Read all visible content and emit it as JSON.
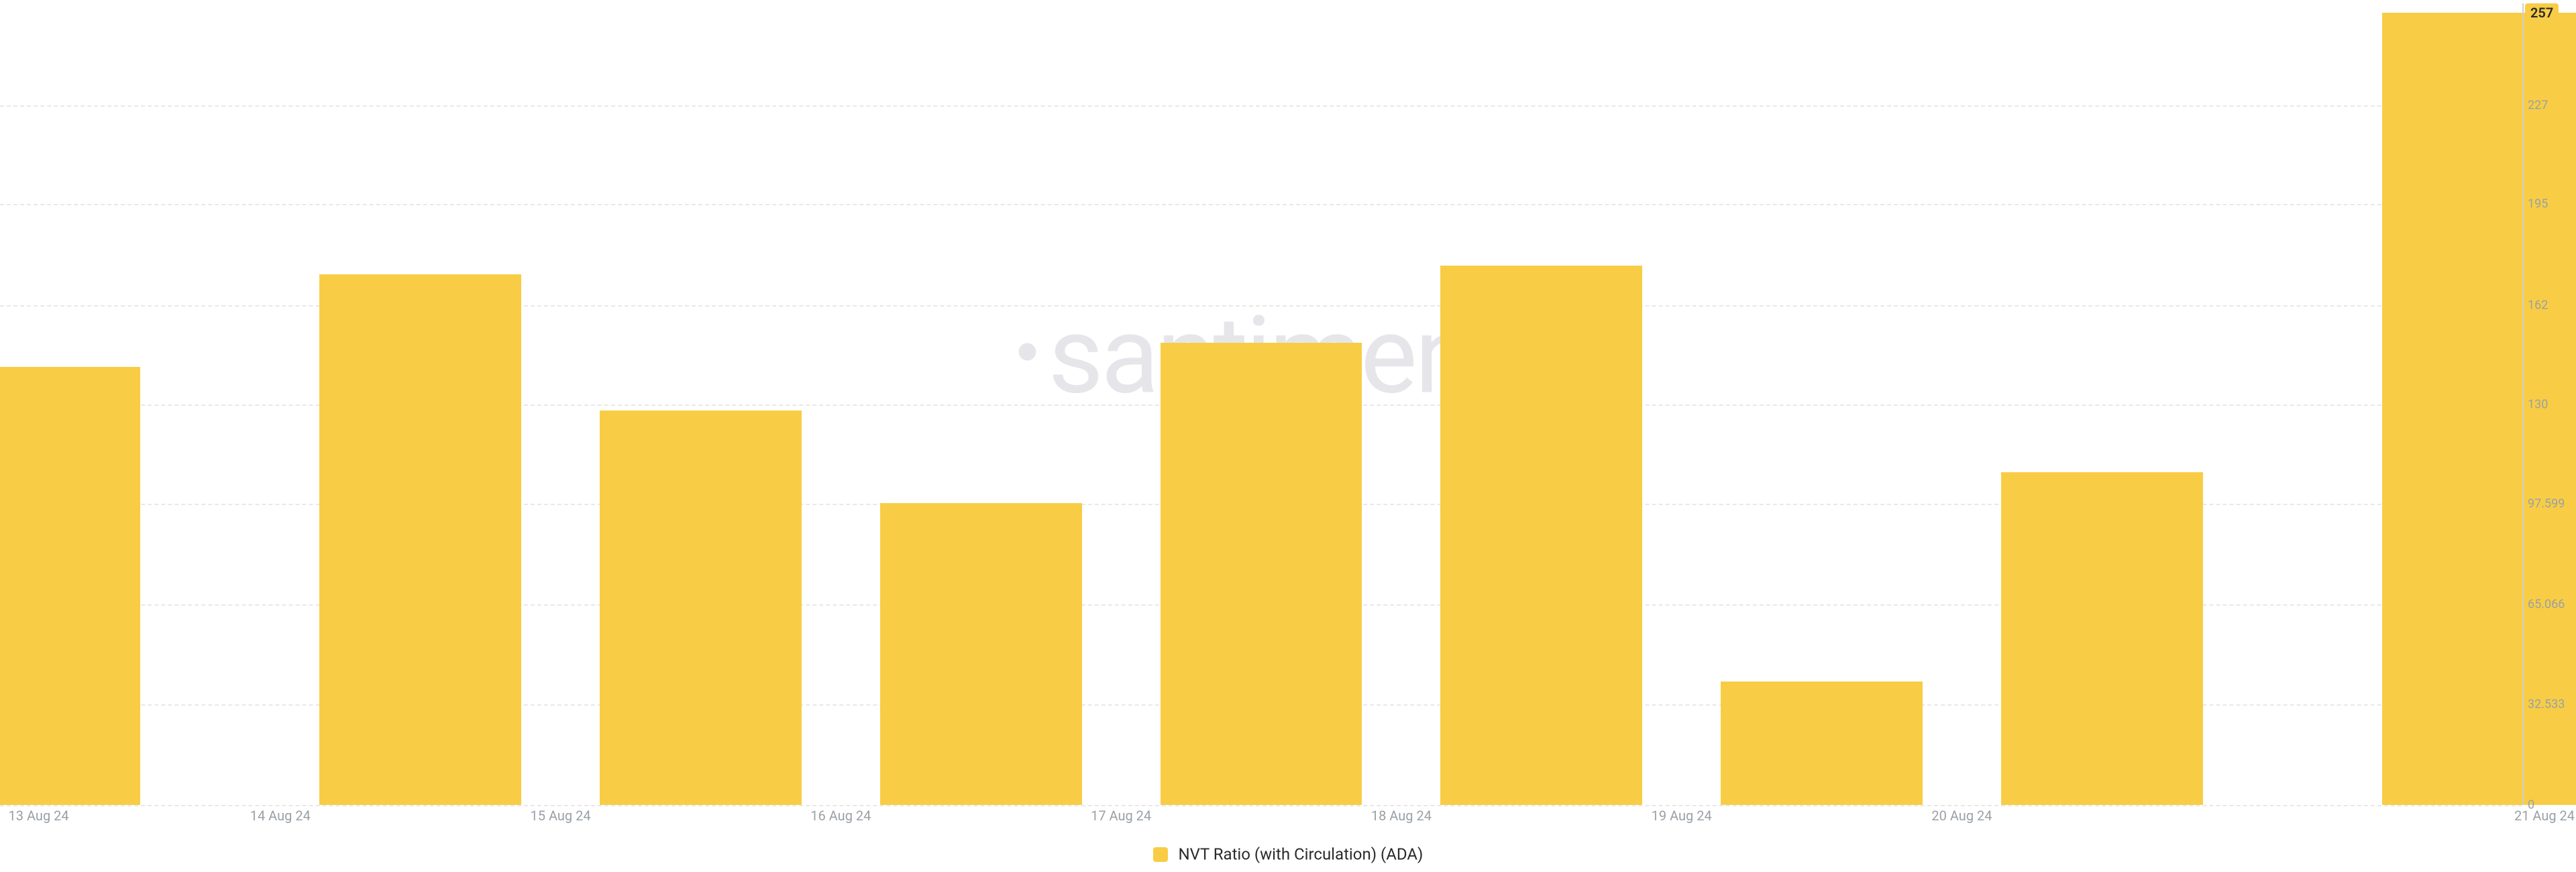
{
  "chart": {
    "type": "bar",
    "background_color": "#ffffff",
    "bar_color": "#f8cd45",
    "grid_color": "#e8e8e8",
    "axis_line_color": "#d0d0d0",
    "y_label_color": "#9aa0a6",
    "x_label_color": "#9aa0a6",
    "x_label_fontsize": 20,
    "y_label_fontsize": 18,
    "bar_width_ratio": 0.72,
    "ylim": [
      0,
      260
    ],
    "y_ticks": [
      {
        "value": 0,
        "label": "0"
      },
      {
        "value": 32.533,
        "label": "32.533"
      },
      {
        "value": 65.066,
        "label": "65.066"
      },
      {
        "value": 97.599,
        "label": "97.599"
      },
      {
        "value": 130,
        "label": "130"
      },
      {
        "value": 162,
        "label": "162"
      },
      {
        "value": 195,
        "label": "195"
      },
      {
        "value": 227,
        "label": "227"
      }
    ],
    "highlight": {
      "value": 257,
      "label": "257",
      "bg": "#f8cd45",
      "text_color": "#2a2a2a"
    },
    "series_label": "NVT Ratio (with Circulation) (ADA)",
    "watermark_text": "santiment",
    "data": [
      {
        "x": "13 Aug 24",
        "y": 142
      },
      {
        "x": "14 Aug 24",
        "y": 172
      },
      {
        "x": "15 Aug 24",
        "y": 128
      },
      {
        "x": "16 Aug 24",
        "y": 98
      },
      {
        "x": "17 Aug 24",
        "y": 150
      },
      {
        "x": "18 Aug 24",
        "y": 175
      },
      {
        "x": "19 Aug 24",
        "y": 40
      },
      {
        "x": "20 Aug 24",
        "y": 108
      },
      {
        "x": "21 Aug 24",
        "y": 257
      }
    ]
  }
}
